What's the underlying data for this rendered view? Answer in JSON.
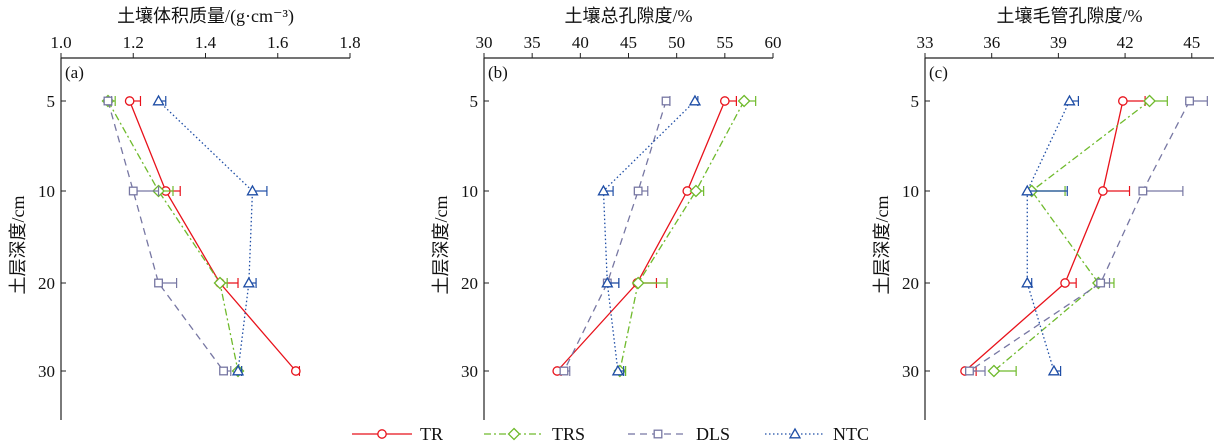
{
  "legend": {
    "placement": "bottom-center",
    "entries": [
      {
        "label": "TR",
        "color": "#e8121b",
        "marker": "circle",
        "dash": ""
      },
      {
        "label": "TRS",
        "color": "#6fba2c",
        "marker": "diamond",
        "dash": "7 3 2 3"
      },
      {
        "label": "DLS",
        "color": "#7777a3",
        "marker": "square",
        "dash": "7 5"
      },
      {
        "label": "NTC",
        "color": "#1f4ea6",
        "marker": "triangle",
        "dash": "1.5 2.5"
      }
    ]
  },
  "chart_data": [
    {
      "type": "line",
      "panel_label": "(a)",
      "title": "土壤体积质量/(g·cm⁻³)",
      "xlabel": "土壤体积质量/(g·cm⁻³)",
      "ylabel": "土层深度/cm",
      "xlim": [
        1.0,
        1.8
      ],
      "x_ticks": [
        "1.0",
        "1.2",
        "1.4",
        "1.6",
        "1.8"
      ],
      "y_ticks": [
        "5",
        "10",
        "20",
        "30"
      ],
      "y_categories": [
        "5",
        "10",
        "20",
        "30"
      ],
      "series": [
        {
          "name": "TR",
          "x": [
            1.19,
            1.29,
            1.44,
            1.65
          ],
          "err": [
            0.03,
            0.04,
            0.05,
            0.01
          ]
        },
        {
          "name": "TRS",
          "x": [
            1.13,
            1.27,
            1.44,
            1.49
          ],
          "err": [
            0.02,
            0.04,
            0.02,
            0.01
          ]
        },
        {
          "name": "DLS",
          "x": [
            1.13,
            1.2,
            1.27,
            1.45
          ],
          "err": [
            0.01,
            0.07,
            0.05,
            0.02
          ]
        },
        {
          "name": "NTC",
          "x": [
            1.27,
            1.53,
            1.52,
            1.49
          ],
          "err": [
            0.02,
            0.04,
            0.02,
            0.01
          ]
        }
      ]
    },
    {
      "type": "line",
      "panel_label": "(b)",
      "title": "土壤总孔隙度/%",
      "xlabel": "土壤总孔隙度/%",
      "ylabel": "土层深度/cm",
      "xlim": [
        30,
        60
      ],
      "x_ticks": [
        "30",
        "35",
        "40",
        "45",
        "50",
        "55",
        "60"
      ],
      "y_ticks": [
        "5",
        "10",
        "20",
        "30"
      ],
      "y_categories": [
        "5",
        "10",
        "20",
        "30"
      ],
      "series": [
        {
          "name": "TR",
          "x": [
            55.0,
            51.1,
            45.9,
            37.6
          ],
          "err": [
            1.2,
            1.0,
            2.0,
            0.4
          ]
        },
        {
          "name": "TRS",
          "x": [
            57.0,
            52.0,
            46.0,
            44.1
          ],
          "err": [
            1.2,
            0.8,
            3.0,
            0.6
          ]
        },
        {
          "name": "DLS",
          "x": [
            48.9,
            46.0,
            42.8,
            38.3
          ],
          "err": [
            0.4,
            1.0,
            1.2,
            0.6
          ]
        },
        {
          "name": "NTC",
          "x": [
            51.9,
            42.4,
            42.8,
            43.9
          ],
          "err": [
            0.3,
            1.0,
            1.2,
            0.6
          ]
        }
      ]
    },
    {
      "type": "line",
      "panel_label": "(c)",
      "title": "土壤毛管孔隙度/%",
      "xlabel": "土壤毛管孔隙度/%",
      "ylabel": "土层深度/cm",
      "xlim": [
        33,
        46
      ],
      "x_ticks": [
        "33",
        "36",
        "39",
        "42",
        "45"
      ],
      "y_ticks": [
        "5",
        "10",
        "20",
        "30"
      ],
      "y_categories": [
        "5",
        "10",
        "20",
        "30"
      ],
      "series": [
        {
          "name": "TR",
          "x": [
            41.9,
            41.0,
            39.3,
            34.8
          ],
          "err": [
            1.0,
            1.2,
            0.5,
            0.5
          ]
        },
        {
          "name": "TRS",
          "x": [
            43.1,
            37.8,
            40.8,
            36.1
          ],
          "err": [
            0.8,
            1.5,
            0.7,
            1.0
          ]
        },
        {
          "name": "DLS",
          "x": [
            44.9,
            42.8,
            40.9,
            35.0
          ],
          "err": [
            0.8,
            1.8,
            0.4,
            0.7
          ]
        },
        {
          "name": "NTC",
          "x": [
            39.5,
            37.6,
            37.6,
            38.8
          ],
          "err": [
            0.4,
            1.8,
            0.2,
            0.3
          ]
        }
      ]
    }
  ]
}
